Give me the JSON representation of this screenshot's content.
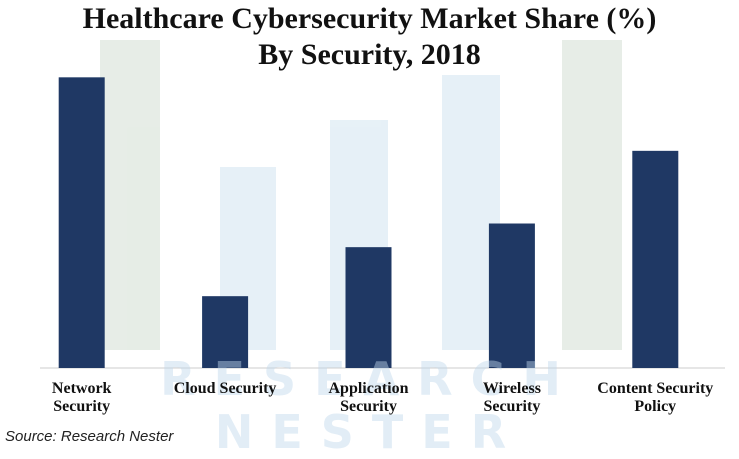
{
  "chart_data": {
    "type": "bar",
    "title": "Healthcare Cybersecurity Market Share (%)",
    "subtitle": "By Security, 2018",
    "categories": [
      "Network\nSecurity",
      "Cloud Security",
      "Application\nSecurity",
      "Wireless\nSecurity",
      "Content Security\nPolicy"
    ],
    "values": [
      34.4,
      8.5,
      14.3,
      17.1,
      25.7
    ],
    "color": "#1f3864",
    "ylim": [
      0,
      40
    ],
    "source": "Source: Research Nester",
    "watermark": [
      "RESEARCH",
      "NESTER"
    ]
  }
}
